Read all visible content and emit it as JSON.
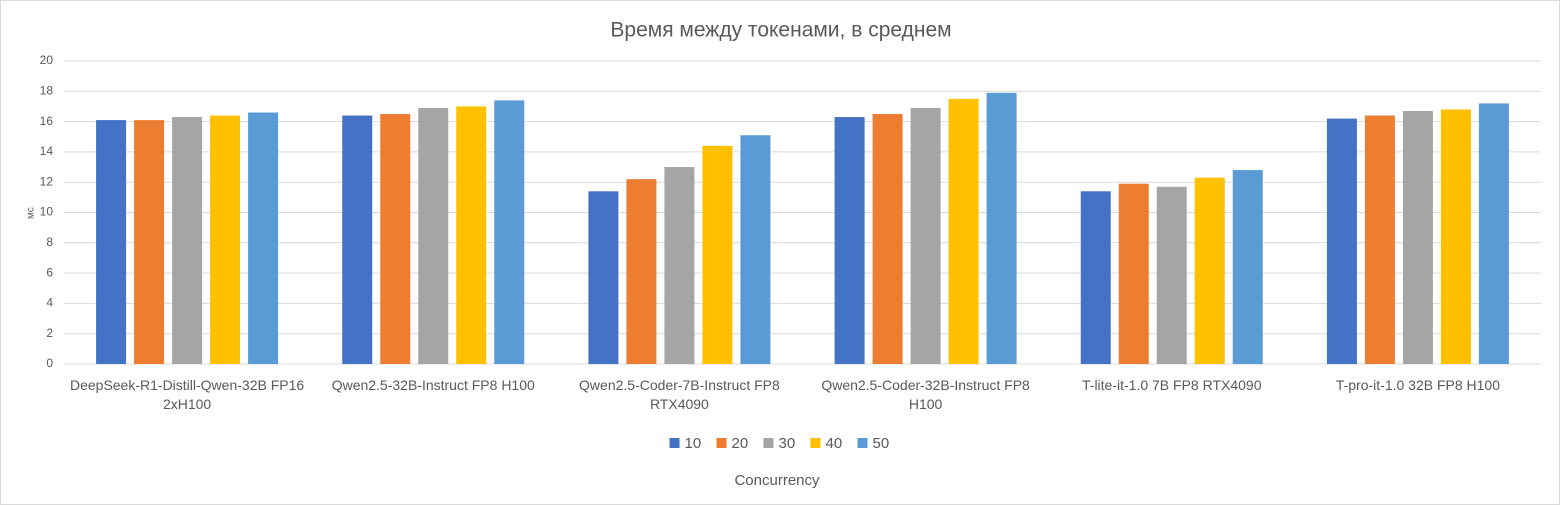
{
  "chart_data": {
    "type": "bar",
    "title": "Время между токенами, в среднем",
    "y_label": "мс",
    "x_label": "Concurrency",
    "categories": [
      "DeepSeek-R1-Distill-Qwen-32B FP16 2xH100",
      "Qwen2.5-32B-Instruct FP8 H100",
      "Qwen2.5-Coder-7B-Instruct FP8 RTX4090",
      "Qwen2.5-Coder-32B-Instruct FP8 H100",
      "T-lite-it-1.0 7B FP8 RTX4090",
      "T-pro-it-1.0 32B FP8 H100"
    ],
    "series": [
      {
        "name": "10",
        "color": "#4472c4",
        "values": [
          16.1,
          16.4,
          11.4,
          16.3,
          11.4,
          16.2
        ]
      },
      {
        "name": "20",
        "color": "#ed7d31",
        "values": [
          16.1,
          16.5,
          12.2,
          16.5,
          11.9,
          16.4
        ]
      },
      {
        "name": "30",
        "color": "#a5a5a5",
        "values": [
          16.3,
          16.9,
          13.0,
          16.9,
          11.7,
          16.7
        ]
      },
      {
        "name": "40",
        "color": "#ffc000",
        "values": [
          16.4,
          17.0,
          14.4,
          17.5,
          12.3,
          16.8
        ]
      },
      {
        "name": "50",
        "color": "#5b9bd5",
        "values": [
          16.6,
          17.4,
          15.1,
          17.9,
          12.8,
          17.2
        ]
      }
    ],
    "ylim": [
      0,
      20
    ],
    "yticks": [
      0,
      2,
      4,
      6,
      8,
      10,
      12,
      14,
      16,
      18,
      20
    ],
    "grid": true,
    "legend": "bottom"
  }
}
